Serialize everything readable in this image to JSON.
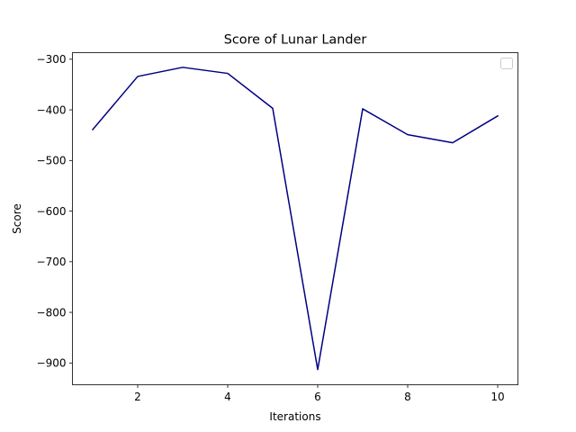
{
  "chart_data": {
    "type": "line",
    "title": "Score of Lunar Lander",
    "xlabel": "Iterations",
    "ylabel": "Score",
    "xlim": [
      0.55,
      10.45
    ],
    "ylim": [
      -943,
      -287
    ],
    "xticks": [
      2,
      4,
      6,
      8,
      10
    ],
    "yticks": [
      -300,
      -400,
      -500,
      -600,
      -700,
      -800,
      -900
    ],
    "xtick_labels": [
      "2",
      "4",
      "6",
      "8",
      "10"
    ],
    "ytick_labels": [
      "−300",
      "−400",
      "−500",
      "−600",
      "−700",
      "−800",
      "−900"
    ],
    "grid": false,
    "legend": {
      "placement": "top-right",
      "entries": []
    },
    "series": [
      {
        "color": "#000080",
        "x": [
          1,
          2,
          3,
          4,
          5,
          6,
          7,
          8,
          9,
          10
        ],
        "values": [
          -439,
          -334,
          -316,
          -328,
          -397,
          -913,
          -398,
          -449,
          -465,
          -412
        ]
      }
    ]
  }
}
